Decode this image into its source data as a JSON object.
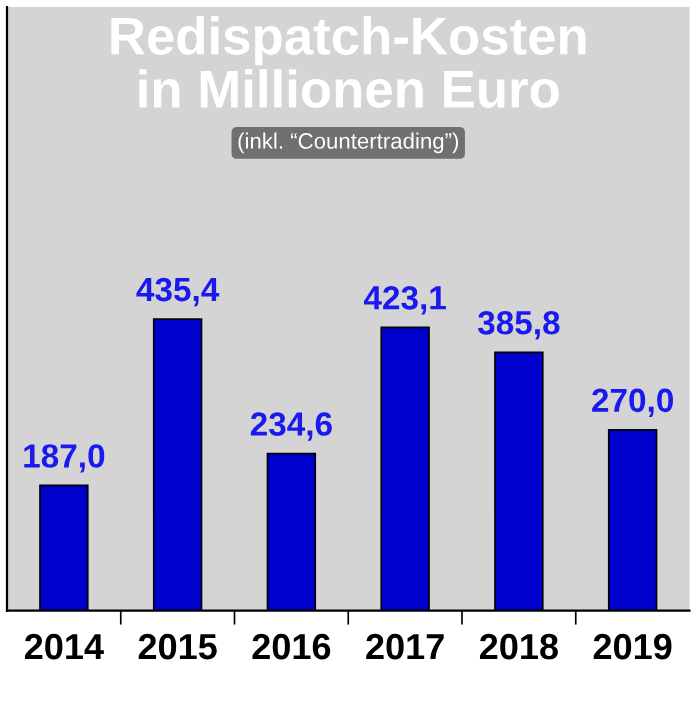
{
  "chart_data": {
    "type": "bar",
    "title": "Redispatch-Kosten\nin Millionen Euro",
    "subtitle": "(inkl. “Countertrading”)",
    "categories": [
      "2014",
      "2015",
      "2016",
      "2017",
      "2018",
      "2019"
    ],
    "values": [
      187.0,
      435.4,
      234.6,
      423.1,
      385.8,
      270.0
    ],
    "value_labels": [
      "187,0",
      "435,4",
      "234,6",
      "423,1",
      "385,8",
      "270,0"
    ],
    "color": "#0000cc",
    "grid": false,
    "legend": false
  }
}
